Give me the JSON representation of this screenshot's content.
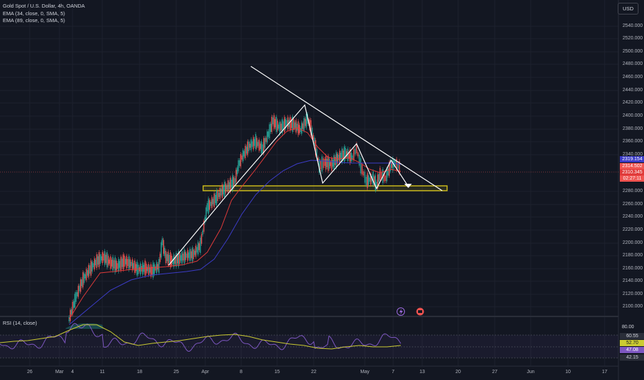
{
  "legend": {
    "title": "Gold Spot / U.S. Dollar, 4h, OANDA",
    "ema1": "EMA (34, close, 0, SMA, 5)",
    "ema2": "EMA (89, close, 0, SMA, 5)"
  },
  "currency": "USD",
  "price_axis": [
    "2540.000",
    "2520.000",
    "2500.000",
    "2480.000",
    "2460.000",
    "2440.000",
    "2420.000",
    "2400.000",
    "2380.000",
    "2360.000",
    "2340.000",
    "2280.000",
    "2260.000",
    "2240.000",
    "2220.000",
    "2200.000",
    "2180.000",
    "2160.000",
    "2140.000",
    "2120.000",
    "2100.000"
  ],
  "price_badges": {
    "ema_fast": "2319.154",
    "last": "2314.502",
    "ema_slow": "2310.345",
    "countdown": "02:27:11"
  },
  "rsi": {
    "label": "RSI (14, close)",
    "levels": [
      "80.00",
      "60.55",
      "52.70",
      "47.08",
      "42.15"
    ]
  },
  "time_axis": [
    "26",
    "Mar",
    "4",
    "11",
    "18",
    "25",
    "Apr",
    "8",
    "15",
    "22",
    "May",
    "7",
    "13",
    "20",
    "27",
    "Jun",
    "10",
    "17"
  ],
  "colors": {
    "background": "#131722",
    "up": "#26a69a",
    "down": "#ef5350",
    "ema_fast": "#e03a3a",
    "ema_slow": "#3c3cc8",
    "support_zone": "#d4c21a",
    "rsi_line": "#7e57c2",
    "rsi_ma": "#cccc33"
  },
  "icons": {
    "event_lightning": "lightning-icon",
    "event_earnings": "earnings-icon"
  }
}
